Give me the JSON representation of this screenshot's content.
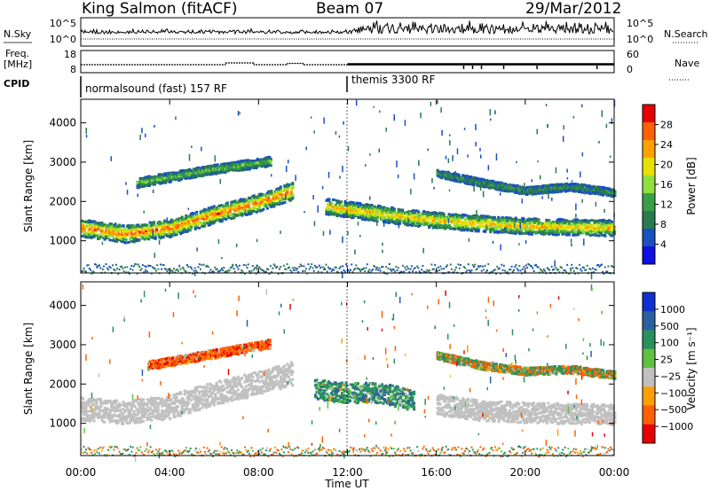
{
  "header": {
    "station": "King Salmon (fitACF)",
    "beam": "Beam 07",
    "date": "29/Mar/2012"
  },
  "noise_panel": {
    "left_label": "N.Sky",
    "right_label": "N.Search",
    "left_ticks": [
      "10^5",
      "10^0"
    ],
    "right_ticks": [
      "10^5",
      "10^0"
    ]
  },
  "freq_panel": {
    "left_label_1": "Freq.",
    "left_label_2": "[MHz]",
    "right_label": "Nave",
    "left_ticks": [
      "18",
      "8"
    ],
    "right_ticks": [
      "60",
      "0"
    ]
  },
  "cpid_panel": {
    "label": "CPID",
    "segments": [
      {
        "name": "normalsound (fast) 157 RF",
        "start_h": 0
      },
      {
        "name": "themis 3300 RF",
        "start_h": 12
      }
    ]
  },
  "chart_data": [
    {
      "type": "heatmap",
      "parameter": "power",
      "ylabel": "Slant Range [km]",
      "yticks": [
        1000,
        2000,
        3000,
        4000
      ],
      "ylim": [
        180,
        4600
      ],
      "xlim": [
        0,
        24
      ],
      "colorbar": {
        "label": "Power [dB]",
        "ticks": [
          "28",
          "24",
          "20",
          "16",
          "12",
          "8",
          "4"
        ],
        "colors": [
          "#e80000",
          "#ff6000",
          "#ffa000",
          "#e8e000",
          "#90e040",
          "#3aa048",
          "#2a7a50",
          "#1a50c0",
          "#1010e0"
        ]
      },
      "bands": [
        {
          "name": "main",
          "points": [
            [
              0,
              1350
            ],
            [
              2,
              1200
            ],
            [
              4,
              1350
            ],
            [
              6,
              1700
            ],
            [
              8,
              2000
            ],
            [
              9.5,
              2300
            ]
          ],
          "width": 220,
          "level": 22
        },
        {
          "name": "upper",
          "points": [
            [
              2.5,
              2500
            ],
            [
              4,
              2650
            ],
            [
              6,
              2850
            ],
            [
              8.5,
              3050
            ]
          ],
          "width": 120,
          "level": 10
        },
        {
          "name": "late-main",
          "points": [
            [
              11,
              1900
            ],
            [
              13,
              1750
            ],
            [
              15,
              1600
            ],
            [
              17,
              1500
            ],
            [
              20,
              1400
            ],
            [
              24,
              1350
            ]
          ],
          "width": 200,
          "level": 18
        },
        {
          "name": "late-upper",
          "points": [
            [
              16,
              2750
            ],
            [
              18,
              2500
            ],
            [
              20,
              2300
            ],
            [
              22,
              2400
            ],
            [
              24,
              2250
            ]
          ],
          "width": 100,
          "level": 6
        }
      ]
    },
    {
      "type": "heatmap",
      "parameter": "velocity",
      "ylabel": "Slant Range [km]",
      "yticks": [
        1000,
        2000,
        3000,
        4000
      ],
      "ylim": [
        180,
        4600
      ],
      "xlim": [
        0,
        24
      ],
      "colorbar": {
        "label": "Velocity [m s⁻¹]",
        "ticks": [
          "1000",
          "500",
          "100",
          "25",
          "−25",
          "−100",
          "−500",
          "−1000"
        ],
        "colors": [
          "#1030d0",
          "#2a60a0",
          "#2a9060",
          "#60c040",
          "#c0c0c0",
          "#ffa000",
          "#ff6000",
          "#e80000"
        ]
      },
      "bands": [
        {
          "name": "main",
          "points": [
            [
              0,
              1400
            ],
            [
              2,
              1300
            ],
            [
              4,
              1450
            ],
            [
              6,
              1800
            ],
            [
              8,
              2050
            ],
            [
              9.5,
              2300
            ]
          ],
          "width": 300,
          "level": 0
        },
        {
          "name": "upper",
          "points": [
            [
              3,
              2500
            ],
            [
              5,
              2700
            ],
            [
              7,
              2900
            ],
            [
              8.5,
              3050
            ]
          ],
          "width": 110,
          "level": -300
        },
        {
          "name": "midday",
          "points": [
            [
              10.5,
              1900
            ],
            [
              12,
              1800
            ],
            [
              13.5,
              1800
            ],
            [
              15,
              1600
            ]
          ],
          "width": 260,
          "level": 300
        },
        {
          "name": "late-main",
          "points": [
            [
              16,
              1500
            ],
            [
              18,
              1350
            ],
            [
              20,
              1300
            ],
            [
              24,
              1250
            ]
          ],
          "width": 260,
          "level": 0
        },
        {
          "name": "late-upper",
          "points": [
            [
              16,
              2750
            ],
            [
              18,
              2500
            ],
            [
              20,
              2350
            ],
            [
              22,
              2400
            ],
            [
              24,
              2250
            ]
          ],
          "width": 100,
          "level": 10
        }
      ]
    }
  ],
  "x_axis": {
    "ticks": [
      "00:00",
      "04:00",
      "08:00",
      "12:00",
      "16:00",
      "20:00",
      "00:00"
    ],
    "label": "Time UT"
  }
}
